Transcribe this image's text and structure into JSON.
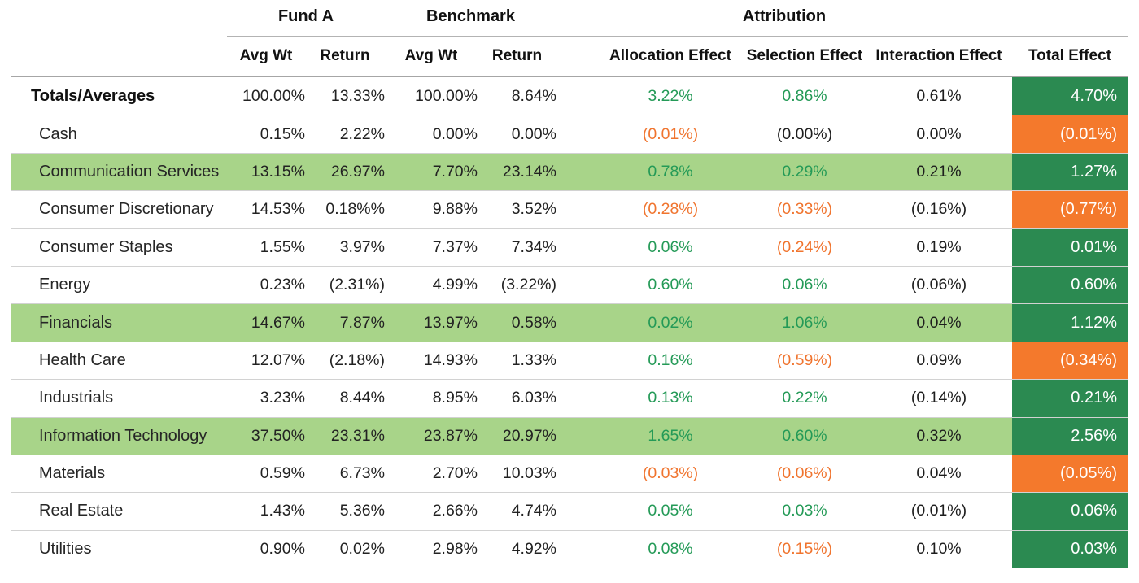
{
  "chart_data": {
    "type": "table",
    "column_groups": {
      "fund": "Fund A",
      "benchmark": "Benchmark",
      "attribution": "Attribution"
    },
    "headers": {
      "fund_avg_wt": "Avg Wt",
      "fund_return": "Return",
      "bench_avg_wt": "Avg Wt",
      "bench_return": "Return",
      "allocation": "Allocation Effect",
      "selection": "Selection Effect",
      "interaction": "Interaction Effect",
      "total": "Total Effect"
    },
    "rows": [
      {
        "label": "Totals/Averages",
        "bold": true,
        "highlight": false,
        "fund_avg_wt": "100.00%",
        "fund_return": "13.33%",
        "bench_avg_wt": "100.00%",
        "bench_return": "8.64%",
        "allocation": "3.22%",
        "allocation_tone": "positive",
        "selection": "0.86%",
        "selection_tone": "positive",
        "interaction": "0.61%",
        "interaction_tone": "neutral",
        "total": "4.70%",
        "total_tone": "positive"
      },
      {
        "label": "Cash",
        "bold": false,
        "highlight": false,
        "fund_avg_wt": "0.15%",
        "fund_return": "2.22%",
        "bench_avg_wt": "0.00%",
        "bench_return": "0.00%",
        "allocation": "(0.01%)",
        "allocation_tone": "negative",
        "selection": "(0.00%)",
        "selection_tone": "neutral",
        "interaction": "0.00%",
        "interaction_tone": "neutral",
        "total": "(0.01%)",
        "total_tone": "negative"
      },
      {
        "label": "Communication Services",
        "bold": false,
        "highlight": true,
        "fund_avg_wt": "13.15%",
        "fund_return": "26.97%",
        "bench_avg_wt": "7.70%",
        "bench_return": "23.14%",
        "allocation": "0.78%",
        "allocation_tone": "positive",
        "selection": "0.29%",
        "selection_tone": "positive",
        "interaction": "0.21%",
        "interaction_tone": "neutral",
        "total": "1.27%",
        "total_tone": "positive"
      },
      {
        "label": "Consumer Discretionary",
        "bold": false,
        "highlight": false,
        "fund_avg_wt": "14.53%",
        "fund_return": "0.18%%",
        "bench_avg_wt": "9.88%",
        "bench_return": "3.52%",
        "allocation": "(0.28%)",
        "allocation_tone": "negative",
        "selection": "(0.33%)",
        "selection_tone": "negative",
        "interaction": "(0.16%)",
        "interaction_tone": "neutral",
        "total": "(0.77%)",
        "total_tone": "negative"
      },
      {
        "label": "Consumer Staples",
        "bold": false,
        "highlight": false,
        "fund_avg_wt": "1.55%",
        "fund_return": "3.97%",
        "bench_avg_wt": "7.37%",
        "bench_return": "7.34%",
        "allocation": "0.06%",
        "allocation_tone": "positive",
        "selection": "(0.24%)",
        "selection_tone": "negative",
        "interaction": "0.19%",
        "interaction_tone": "neutral",
        "total": "0.01%",
        "total_tone": "positive"
      },
      {
        "label": "Energy",
        "bold": false,
        "highlight": false,
        "fund_avg_wt": "0.23%",
        "fund_return": "(2.31%)",
        "bench_avg_wt": "4.99%",
        "bench_return": "(3.22%)",
        "allocation": "0.60%",
        "allocation_tone": "positive",
        "selection": "0.06%",
        "selection_tone": "positive",
        "interaction": "(0.06%)",
        "interaction_tone": "neutral",
        "total": "0.60%",
        "total_tone": "positive"
      },
      {
        "label": "Financials",
        "bold": false,
        "highlight": true,
        "fund_avg_wt": "14.67%",
        "fund_return": "7.87%",
        "bench_avg_wt": "13.97%",
        "bench_return": "0.58%",
        "allocation": "0.02%",
        "allocation_tone": "positive",
        "selection": "1.06%",
        "selection_tone": "positive",
        "interaction": "0.04%",
        "interaction_tone": "neutral",
        "total": "1.12%",
        "total_tone": "positive"
      },
      {
        "label": "Health Care",
        "bold": false,
        "highlight": false,
        "fund_avg_wt": "12.07%",
        "fund_return": "(2.18%)",
        "bench_avg_wt": "14.93%",
        "bench_return": "1.33%",
        "allocation": "0.16%",
        "allocation_tone": "positive",
        "selection": "(0.59%)",
        "selection_tone": "negative",
        "interaction": "0.09%",
        "interaction_tone": "neutral",
        "total": "(0.34%)",
        "total_tone": "negative"
      },
      {
        "label": "Industrials",
        "bold": false,
        "highlight": false,
        "fund_avg_wt": "3.23%",
        "fund_return": "8.44%",
        "bench_avg_wt": "8.95%",
        "bench_return": "6.03%",
        "allocation": "0.13%",
        "allocation_tone": "positive",
        "selection": "0.22%",
        "selection_tone": "positive",
        "interaction": "(0.14%)",
        "interaction_tone": "neutral",
        "total": "0.21%",
        "total_tone": "positive"
      },
      {
        "label": "Information Technology",
        "bold": false,
        "highlight": true,
        "fund_avg_wt": "37.50%",
        "fund_return": "23.31%",
        "bench_avg_wt": "23.87%",
        "bench_return": "20.97%",
        "allocation": "1.65%",
        "allocation_tone": "positive",
        "selection": "0.60%",
        "selection_tone": "positive",
        "interaction": "0.32%",
        "interaction_tone": "neutral",
        "total": "2.56%",
        "total_tone": "positive"
      },
      {
        "label": "Materials",
        "bold": false,
        "highlight": false,
        "fund_avg_wt": "0.59%",
        "fund_return": "6.73%",
        "bench_avg_wt": "2.70%",
        "bench_return": "10.03%",
        "allocation": "(0.03%)",
        "allocation_tone": "negative",
        "selection": "(0.06%)",
        "selection_tone": "negative",
        "interaction": "0.04%",
        "interaction_tone": "neutral",
        "total": "(0.05%)",
        "total_tone": "negative"
      },
      {
        "label": "Real Estate",
        "bold": false,
        "highlight": false,
        "fund_avg_wt": "1.43%",
        "fund_return": "5.36%",
        "bench_avg_wt": "2.66%",
        "bench_return": "4.74%",
        "allocation": "0.05%",
        "allocation_tone": "positive",
        "selection": "0.03%",
        "selection_tone": "positive",
        "interaction": "(0.01%)",
        "interaction_tone": "neutral",
        "total": "0.06%",
        "total_tone": "positive"
      },
      {
        "label": "Utilities",
        "bold": false,
        "highlight": false,
        "fund_avg_wt": "0.90%",
        "fund_return": "0.02%",
        "bench_avg_wt": "2.98%",
        "bench_return": "4.92%",
        "allocation": "0.08%",
        "allocation_tone": "positive",
        "selection": "(0.15%)",
        "selection_tone": "negative",
        "interaction": "0.10%",
        "interaction_tone": "neutral",
        "total": "0.03%",
        "total_tone": "positive"
      }
    ],
    "colors": {
      "positive_text": "#249a57",
      "negative_text": "#f0742e",
      "neutral_text": "#1d1d1d",
      "row_highlight_bg": "#a8d489",
      "total_positive_bg": "#2b8a51",
      "total_negative_bg": "#f4792c",
      "total_text": "#ffffff"
    }
  }
}
